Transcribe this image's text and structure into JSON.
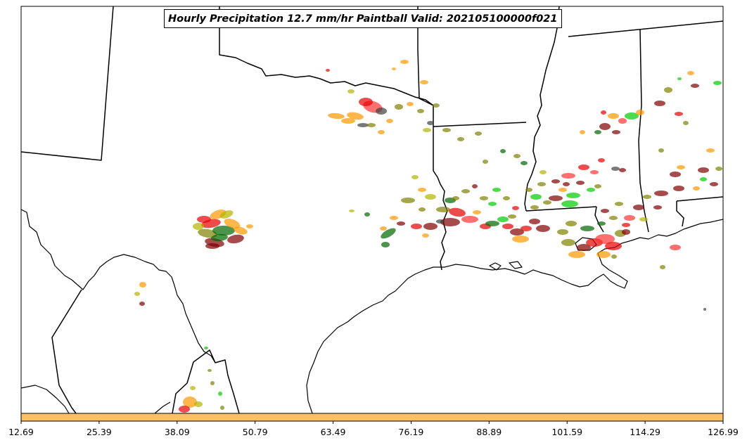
{
  "title": "Hourly Precipitation 12.7 mm/hr Paintball Valid: 202105100000f021",
  "colorbar": {
    "color": "#ffbf66",
    "tick_labels": [
      "12.69",
      "25.39",
      "38.09",
      "50.79",
      "63.49",
      "76.19",
      "88.89",
      "101.59",
      "114.29",
      "126.99"
    ]
  },
  "member_colors": [
    "#ff9900",
    "#e60000",
    "#800000",
    "#006600",
    "#808000",
    "#b3b300",
    "#00cc00",
    "#ff3333",
    "#404040"
  ]
}
